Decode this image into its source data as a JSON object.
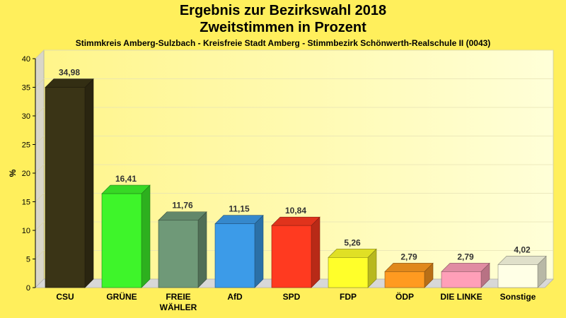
{
  "chart_data": {
    "type": "bar",
    "title": "Ergebnis zur Bezirkswahl 2018",
    "title_line2": "Zweitstimmen in Prozent",
    "subtitle": "Stimmkreis Amberg-Sulzbach - Kreisfreie Stadt Amberg - Stimmbezirk Schönwerth-Realschule II (0043)",
    "ylabel": "%",
    "xlabel": "",
    "ylim": [
      0,
      40
    ],
    "yticks": [
      0,
      5,
      10,
      15,
      20,
      25,
      30,
      35,
      40
    ],
    "grid": true,
    "categories": [
      "CSU",
      "GRÜNE",
      "FREIE WÄHLER",
      "AfD",
      "SPD",
      "FDP",
      "ÖDP",
      "DIE LINKE",
      "Sonstige"
    ],
    "category_lines": [
      [
        "CSU"
      ],
      [
        "GRÜNE"
      ],
      [
        "FREIE",
        "WÄHLER"
      ],
      [
        "AfD"
      ],
      [
        "SPD"
      ],
      [
        "FDP"
      ],
      [
        "ÖDP"
      ],
      [
        "DIE LINKE"
      ],
      [
        "Sonstige"
      ]
    ],
    "values": [
      34.98,
      16.41,
      11.76,
      11.15,
      10.84,
      5.26,
      2.79,
      2.79,
      4.02
    ],
    "value_labels": [
      "34,98",
      "16,41",
      "11,76",
      "11,15",
      "10,84",
      "5,26",
      "2,79",
      "2,79",
      "4,02"
    ],
    "colors": [
      "#3A3416",
      "#3EF52A",
      "#6F9978",
      "#3C9BE8",
      "#FF3A20",
      "#FFFF2A",
      "#FF9A20",
      "#FF9FB8",
      "#FFFFE6"
    ]
  }
}
